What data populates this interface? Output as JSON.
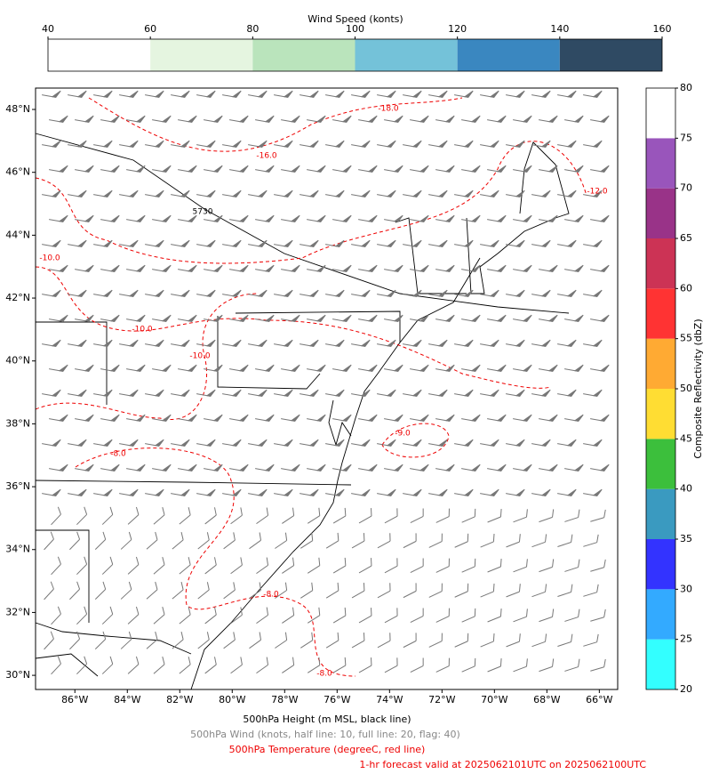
{
  "wind_colorbar": {
    "label": "Wind Speed (konts)",
    "ticks": [
      40,
      60,
      80,
      100,
      120,
      140,
      160
    ],
    "colors": [
      "#ffffff",
      "#e5f5e0",
      "#bae4bc",
      "#74c2d9",
      "#3a87c0",
      "#2f4a63"
    ]
  },
  "reflectivity_colorbar": {
    "label": "Composite Reflectivity (dbZ)",
    "ticks": [
      20,
      25,
      30,
      35,
      40,
      45,
      50,
      55,
      60,
      65,
      70,
      75,
      80
    ],
    "colors": [
      "#33ffff",
      "#33aaff",
      "#3333ff",
      "#3a9ac0",
      "#3cbf3c",
      "#ffdd33",
      "#ffaa33",
      "#ff3333",
      "#cc3355",
      "#993388",
      "#9955bb",
      "#ffffff"
    ]
  },
  "map": {
    "xlim": [
      -87.5,
      -65.3
    ],
    "ylim": [
      29.55,
      48.68
    ],
    "lon_ticks": [
      {
        "value": -86,
        "label": "86°W"
      },
      {
        "value": -84,
        "label": "84°W"
      },
      {
        "value": -82,
        "label": "82°W"
      },
      {
        "value": -80,
        "label": "80°W"
      },
      {
        "value": -78,
        "label": "78°W"
      },
      {
        "value": -76,
        "label": "76°W"
      },
      {
        "value": -74,
        "label": "74°W"
      },
      {
        "value": -72,
        "label": "72°W"
      },
      {
        "value": -70,
        "label": "70°W"
      },
      {
        "value": -68,
        "label": "68°W"
      },
      {
        "value": -66,
        "label": "66°W"
      }
    ],
    "lat_ticks": [
      {
        "value": 30,
        "label": "30°N"
      },
      {
        "value": 32,
        "label": "32°N"
      },
      {
        "value": 34,
        "label": "34°N"
      },
      {
        "value": 36,
        "label": "36°N"
      },
      {
        "value": 38,
        "label": "38°N"
      },
      {
        "value": 40,
        "label": "40°N"
      },
      {
        "value": 42,
        "label": "42°N"
      },
      {
        "value": 44,
        "label": "44°N"
      },
      {
        "value": 46,
        "label": "46°N"
      },
      {
        "value": 48,
        "label": "48°N"
      }
    ],
    "contour_labels": [
      "-18.0",
      "-16.0",
      "-12.0",
      "-10.0",
      "5730",
      "-10.0",
      "-10.0",
      "-8.0",
      "-9.0",
      "-8.0",
      "-8.0"
    ]
  },
  "captions": [
    "500hPa Height (m MSL, black line)",
    "500hPa Wind (knots, half line: 10, full line: 20, flag: 40)",
    "500hPa Temperature (degreeC, red line)",
    "1-hr forecast valid at 2025062101UTC on 2025062100UTC"
  ]
}
